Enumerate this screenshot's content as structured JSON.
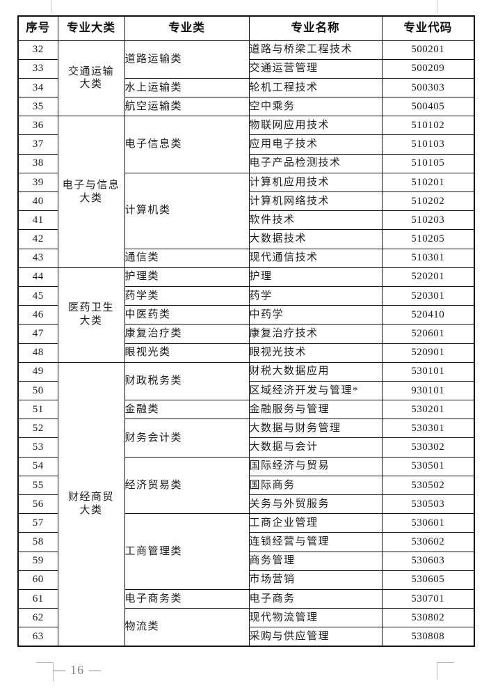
{
  "colors": {
    "table_border": "#111111",
    "body_text": "#1b1b1b",
    "footer_text": "#84848e",
    "crop_mark": "#b5b5b5"
  },
  "footer": {
    "dash_left": "—",
    "page_number": "16",
    "dash_right": "—"
  },
  "table": {
    "headers": [
      {
        "key": "serial",
        "label": "序号"
      },
      {
        "key": "category",
        "label": "专业大类"
      },
      {
        "key": "class",
        "label": "专业类"
      },
      {
        "key": "major-name",
        "label": "专业名称"
      },
      {
        "key": "major-code",
        "label": "专业代码"
      }
    ],
    "groups": [
      {
        "category": "交通运输\n大类",
        "subgroups": [
          {
            "class": "道路运输类",
            "majors": [
              {
                "no": "32",
                "name": "道路与桥梁工程技术",
                "code": "500201"
              },
              {
                "no": "33",
                "name": "交通运营管理",
                "code": "500209"
              }
            ]
          },
          {
            "class": "水上运输类",
            "majors": [
              {
                "no": "34",
                "name": "轮机工程技术",
                "code": "500303"
              }
            ]
          },
          {
            "class": "航空运输类",
            "majors": [
              {
                "no": "35",
                "name": "空中乘务",
                "code": "500405"
              }
            ]
          }
        ]
      },
      {
        "category": "电子与信息\n大类",
        "subgroups": [
          {
            "class": "电子信息类",
            "majors": [
              {
                "no": "36",
                "name": "物联网应用技术",
                "code": "510102"
              },
              {
                "no": "37",
                "name": "应用电子技术",
                "code": "510103"
              },
              {
                "no": "38",
                "name": "电子产品检测技术",
                "code": "510105"
              }
            ]
          },
          {
            "class": "计算机类",
            "majors": [
              {
                "no": "39",
                "name": "计算机应用技术",
                "code": "510201"
              },
              {
                "no": "40",
                "name": "计算机网络技术",
                "code": "510202"
              },
              {
                "no": "41",
                "name": "软件技术",
                "code": "510203"
              },
              {
                "no": "42",
                "name": "大数据技术",
                "code": "510205"
              }
            ]
          },
          {
            "class": "通信类",
            "majors": [
              {
                "no": "43",
                "name": "现代通信技术",
                "code": "510301"
              }
            ]
          }
        ]
      },
      {
        "category": "医药卫生\n大类",
        "subgroups": [
          {
            "class": "护理类",
            "majors": [
              {
                "no": "44",
                "name": "护理",
                "code": "520201"
              }
            ]
          },
          {
            "class": "药学类",
            "majors": [
              {
                "no": "45",
                "name": "药学",
                "code": "520301"
              }
            ]
          },
          {
            "class": "中医药类",
            "majors": [
              {
                "no": "46",
                "name": "中药学",
                "code": "520410"
              }
            ]
          },
          {
            "class": "康复治疗类",
            "majors": [
              {
                "no": "47",
                "name": "康复治疗技术",
                "code": "520601"
              }
            ]
          },
          {
            "class": "眼视光类",
            "majors": [
              {
                "no": "48",
                "name": "眼视光技术",
                "code": "520901"
              }
            ]
          }
        ]
      },
      {
        "category": "财经商贸\n大类",
        "subgroups": [
          {
            "class": "财政税务类",
            "majors": [
              {
                "no": "49",
                "name": "财税大数据应用",
                "code": "530101"
              },
              {
                "no": "50",
                "name": "区域经济开发与管理*",
                "code": "930101"
              }
            ]
          },
          {
            "class": "金融类",
            "majors": [
              {
                "no": "51",
                "name": "金融服务与管理",
                "code": "530201"
              }
            ]
          },
          {
            "class": "财务会计类",
            "majors": [
              {
                "no": "52",
                "name": "大数据与财务管理",
                "code": "530301"
              },
              {
                "no": "53",
                "name": "大数据与会计",
                "code": "530302"
              }
            ]
          },
          {
            "class": "经济贸易类",
            "majors": [
              {
                "no": "54",
                "name": "国际经济与贸易",
                "code": "530501"
              },
              {
                "no": "55",
                "name": "国际商务",
                "code": "530502"
              },
              {
                "no": "56",
                "name": "关务与外贸服务",
                "code": "530503"
              }
            ]
          },
          {
            "class": "工商管理类",
            "majors": [
              {
                "no": "57",
                "name": "工商企业管理",
                "code": "530601"
              },
              {
                "no": "58",
                "name": "连锁经营与管理",
                "code": "530602"
              },
              {
                "no": "59",
                "name": "商务管理",
                "code": "530603"
              },
              {
                "no": "60",
                "name": "市场营销",
                "code": "530605"
              }
            ]
          },
          {
            "class": "电子商务类",
            "majors": [
              {
                "no": "61",
                "name": "电子商务",
                "code": "530701"
              }
            ]
          },
          {
            "class": "物流类",
            "majors": [
              {
                "no": "62",
                "name": "现代物流管理",
                "code": "530802"
              },
              {
                "no": "63",
                "name": "采购与供应管理",
                "code": "530808"
              }
            ]
          }
        ]
      }
    ]
  }
}
